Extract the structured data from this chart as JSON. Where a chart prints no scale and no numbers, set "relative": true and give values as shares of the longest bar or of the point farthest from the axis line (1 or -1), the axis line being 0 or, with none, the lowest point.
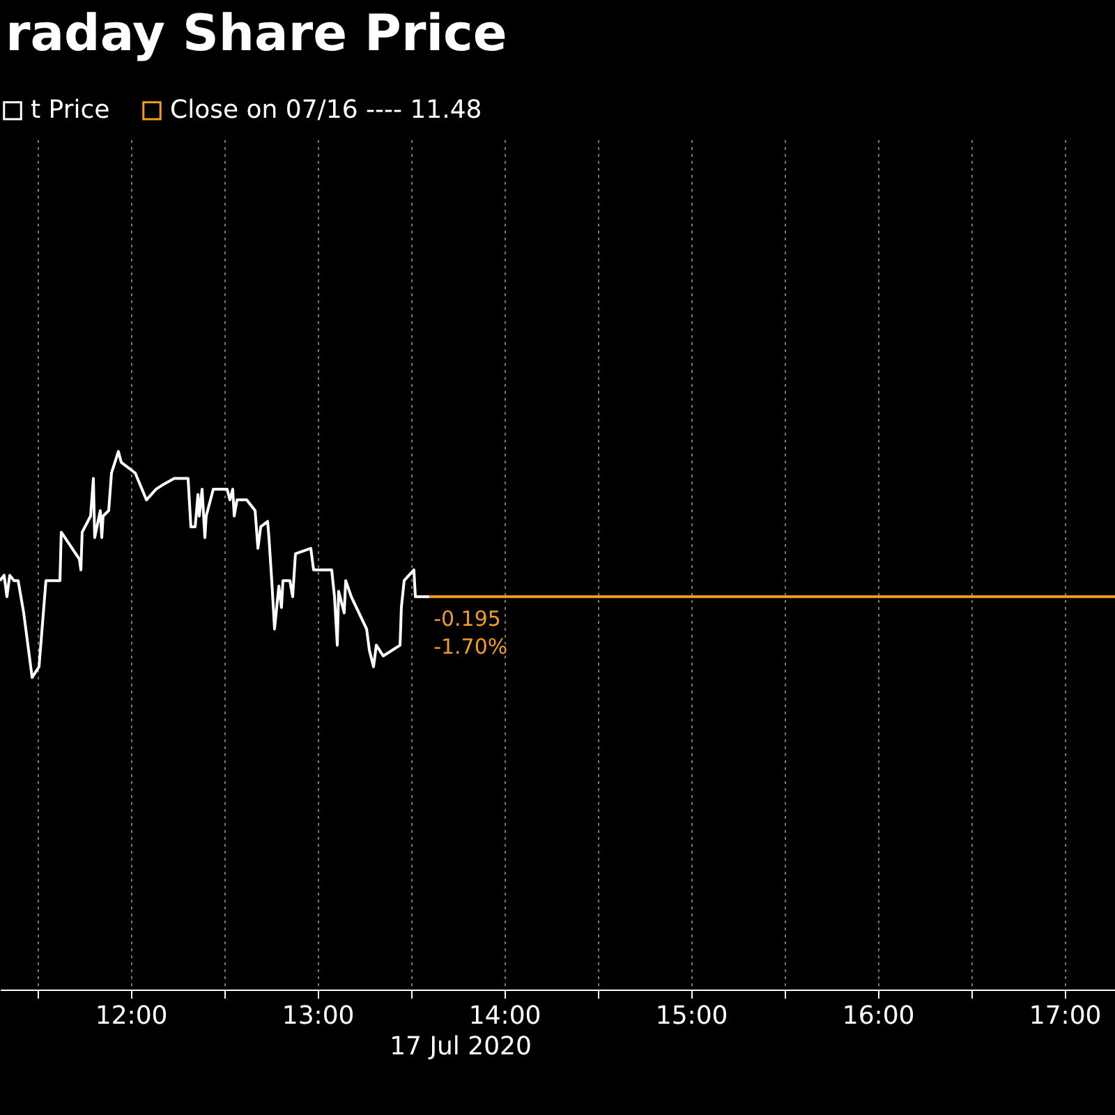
{
  "chart_data": {
    "type": "line",
    "title": "raday Share Price",
    "xlabel": "17 Jul 2020",
    "relative": true,
    "legend": "top left",
    "grid": "x",
    "marker": "none",
    "xlim": [
      11.3,
      17.27
    ],
    "xticks": [
      {
        "value": 11.5,
        "label": null
      },
      {
        "value": 12,
        "label": "12:00"
      },
      {
        "value": 12.5,
        "label": null
      },
      {
        "value": 13,
        "label": "13:00"
      },
      {
        "value": 13.5,
        "label": null
      },
      {
        "value": 14,
        "label": "14:00"
      },
      {
        "value": 14.5,
        "label": null
      },
      {
        "value": 15,
        "label": "15:00"
      },
      {
        "value": 15.5,
        "label": null
      },
      {
        "value": 16,
        "label": "16:00"
      },
      {
        "value": 16.5,
        "label": null
      },
      {
        "value": 17,
        "label": "17:00"
      }
    ],
    "series": [
      {
        "name": "t Price",
        "color": "#ffffff",
        "x": [
          11.3,
          11.322,
          11.337,
          11.352,
          11.375,
          11.397,
          11.412,
          11.427,
          11.472,
          11.509,
          11.546,
          11.621,
          11.628,
          11.725,
          11.733,
          11.74,
          11.785,
          11.8,
          11.807,
          11.837,
          11.845,
          11.852,
          11.882,
          11.897,
          11.934,
          11.949,
          12.024,
          12.084,
          12.136,
          12.181,
          12.233,
          12.307,
          12.322,
          12.345,
          12.36,
          12.367,
          12.382,
          12.397,
          12.404,
          12.442,
          12.516,
          12.531,
          12.546,
          12.554,
          12.569,
          12.621,
          12.666,
          12.681,
          12.696,
          12.733,
          12.74,
          12.755,
          12.77,
          12.793,
          12.807,
          12.815,
          12.852,
          12.867,
          12.882,
          12.964,
          12.979,
          13.076,
          13.091,
          13.106,
          13.113,
          13.143,
          13.151,
          13.181,
          13.263,
          13.278,
          13.3,
          13.315,
          13.352,
          13.442,
          13.449,
          13.464,
          13.516,
          13.524,
          13.599
        ],
        "values": [
          0.76,
          0.77,
          0.73,
          0.77,
          0.76,
          0.76,
          0.73,
          0.7,
          0.58,
          0.6,
          0.76,
          0.76,
          0.85,
          0.8,
          0.78,
          0.85,
          0.88,
          0.95,
          0.84,
          0.89,
          0.84,
          0.88,
          0.89,
          0.96,
          1.0,
          0.98,
          0.96,
          0.91,
          0.93,
          0.94,
          0.95,
          0.95,
          0.86,
          0.86,
          0.92,
          0.88,
          0.93,
          0.84,
          0.88,
          0.93,
          0.93,
          0.91,
          0.93,
          0.88,
          0.91,
          0.91,
          0.89,
          0.82,
          0.86,
          0.87,
          0.84,
          0.76,
          0.67,
          0.75,
          0.71,
          0.76,
          0.76,
          0.73,
          0.81,
          0.82,
          0.78,
          0.78,
          0.73,
          0.64,
          0.74,
          0.7,
          0.76,
          0.73,
          0.67,
          0.63,
          0.6,
          0.64,
          0.62,
          0.64,
          0.71,
          0.76,
          0.78,
          0.73,
          0.73
        ]
      },
      {
        "name": "Close on 07/16 ---- 11.48",
        "color": "#f39c1e",
        "x": [
          13.599,
          17.27
        ],
        "values": [
          0.73,
          0.73
        ]
      }
    ],
    "annotations": [
      "-0.195",
      "-1.70%"
    ]
  }
}
